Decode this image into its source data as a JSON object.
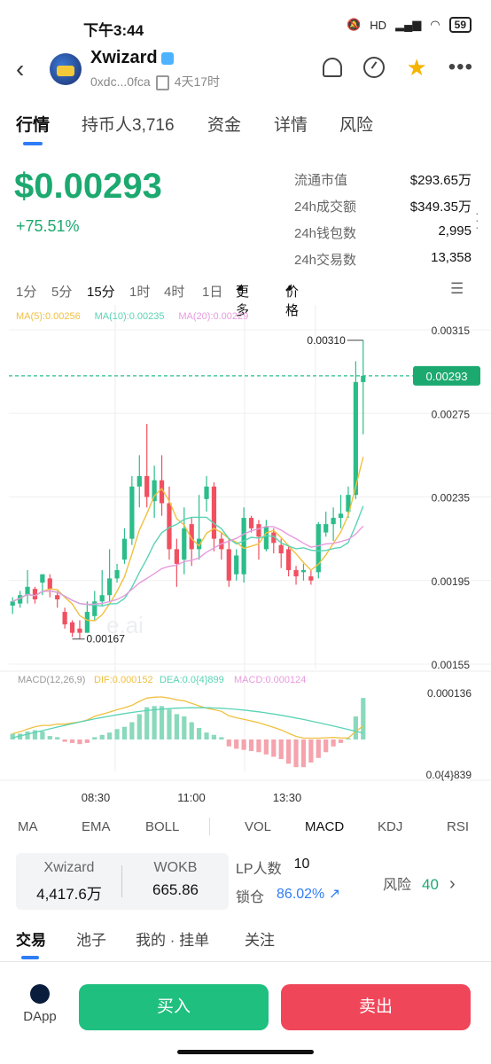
{
  "status_bar": {
    "time": "下午3:44",
    "network": "HD",
    "battery": "59"
  },
  "header": {
    "title": "Xwizard",
    "address": "0xdc...0fca",
    "age": "4天17时"
  },
  "tabs": [
    {
      "label": "行情"
    },
    {
      "label": "持币人3,716"
    },
    {
      "label": "资金"
    },
    {
      "label": "详情"
    },
    {
      "label": "风险"
    }
  ],
  "price": {
    "value": "$0.00293",
    "change": "+75.51%"
  },
  "stats": [
    {
      "label": "流通市值",
      "value": "$293.65万"
    },
    {
      "label": "24h成交额",
      "value": "$349.35万"
    },
    {
      "label": "24h钱包数",
      "value": "2,995"
    },
    {
      "label": "24h交易数",
      "value": "13,358"
    }
  ],
  "intervals": [
    "1分",
    "5分",
    "15分",
    "1时",
    "4时",
    "1日"
  ],
  "intervals_selected": "15分",
  "interval_more": "更多",
  "interval_price": "价格",
  "chart_data": {
    "type": "candlestick",
    "ma_legend": [
      {
        "label": "MA(5):0.00256",
        "color": "#f0c040"
      },
      {
        "label": "MA(10):0.00235",
        "color": "#5ad3b5"
      },
      {
        "label": "MA(20):0.00229",
        "color": "#e79bde"
      }
    ],
    "y_ticks": [
      "0.00315",
      "0.00275",
      "0.00235",
      "0.00195",
      "0.00155"
    ],
    "ylim": [
      0.00155,
      0.00315
    ],
    "current_price": "0.00293",
    "high_label": "0.00310",
    "low_label": "0.00167",
    "watermark": "e.ai",
    "x_ticks": [
      "08:30",
      "11:00",
      "13:30"
    ],
    "candles": [
      [
        0.00183,
        0.00185,
        0.00179,
        0.00187
      ],
      [
        0.00184,
        0.00188,
        0.00182,
        0.0019
      ],
      [
        0.00188,
        0.00192,
        0.00184,
        0.002
      ],
      [
        0.00191,
        0.00186,
        0.00184,
        0.00192
      ],
      [
        0.00194,
        0.00198,
        0.00188,
        0.00198
      ],
      [
        0.00196,
        0.00191,
        0.00187,
        0.00198
      ],
      [
        0.00188,
        0.00186,
        0.00182,
        0.0019
      ],
      [
        0.0018,
        0.00174,
        0.00172,
        0.00182
      ],
      [
        0.00175,
        0.0017,
        0.00168,
        0.00176
      ],
      [
        0.00172,
        0.0017,
        0.00167,
        0.00176
      ],
      [
        0.0017,
        0.0018,
        0.0017,
        0.00185
      ],
      [
        0.00178,
        0.00185,
        0.00176,
        0.0019
      ],
      [
        0.00185,
        0.00188,
        0.00183,
        0.002
      ],
      [
        0.00188,
        0.00196,
        0.00185,
        0.0021
      ],
      [
        0.00196,
        0.002,
        0.00194,
        0.00203
      ],
      [
        0.00205,
        0.00215,
        0.00203,
        0.0022
      ],
      [
        0.00215,
        0.0024,
        0.00212,
        0.00245
      ],
      [
        0.0024,
        0.00245,
        0.0023,
        0.00255
      ],
      [
        0.00245,
        0.00235,
        0.0023,
        0.0027
      ],
      [
        0.00233,
        0.00243,
        0.00225,
        0.0025
      ],
      [
        0.00243,
        0.00232,
        0.00226,
        0.00255
      ],
      [
        0.00232,
        0.0021,
        0.00205,
        0.0024
      ],
      [
        0.0021,
        0.00203,
        0.00192,
        0.00215
      ],
      [
        0.00205,
        0.0022,
        0.00198,
        0.0023
      ],
      [
        0.00222,
        0.0021,
        0.00202,
        0.00225
      ],
      [
        0.0021,
        0.00215,
        0.00205,
        0.00236
      ],
      [
        0.00234,
        0.0024,
        0.00228,
        0.00245
      ],
      [
        0.0024,
        0.00215,
        0.00209,
        0.00242
      ],
      [
        0.00215,
        0.0021,
        0.00205,
        0.00218
      ],
      [
        0.0021,
        0.00195,
        0.00192,
        0.00215
      ],
      [
        0.00198,
        0.00207,
        0.00195,
        0.0021
      ],
      [
        0.00198,
        0.00225,
        0.00194,
        0.0023
      ],
      [
        0.00225,
        0.0022,
        0.00218,
        0.00226
      ],
      [
        0.00222,
        0.00216,
        0.00205,
        0.00224
      ],
      [
        0.0021,
        0.00221,
        0.00209,
        0.00224
      ],
      [
        0.00218,
        0.00213,
        0.00208,
        0.0022
      ],
      [
        0.00212,
        0.00208,
        0.00201,
        0.00215
      ],
      [
        0.0021,
        0.002,
        0.00197,
        0.00212
      ],
      [
        0.002,
        0.00197,
        0.00193,
        0.00202
      ],
      [
        0.00199,
        0.002,
        0.00195,
        0.00203
      ],
      [
        0.00197,
        0.00195,
        0.00193,
        0.002
      ],
      [
        0.00199,
        0.00222,
        0.00196,
        0.00223
      ],
      [
        0.00218,
        0.00222,
        0.00216,
        0.00228
      ],
      [
        0.00222,
        0.00225,
        0.00214,
        0.0023
      ],
      [
        0.00225,
        0.00227,
        0.0022,
        0.00236
      ],
      [
        0.00228,
        0.00236,
        0.00225,
        0.0024
      ],
      [
        0.00236,
        0.0029,
        0.00234,
        0.003
      ],
      [
        0.0029,
        0.00293,
        0.00265,
        0.0031
      ]
    ],
    "macd": {
      "label": "MACD(12,26,9)",
      "dif": "DIF:0.000152",
      "dea": "DEA:0.0{4}899",
      "value": "MACD:0.000124",
      "y_top": "0.000136",
      "y_bottom": "0.0{4}839",
      "hist": [
        0.1,
        0.1,
        0.14,
        0.16,
        0.14,
        0.06,
        0.04,
        -0.04,
        -0.06,
        -0.08,
        -0.06,
        0.04,
        0.08,
        0.12,
        0.18,
        0.22,
        0.3,
        0.44,
        0.56,
        0.58,
        0.58,
        0.52,
        0.44,
        0.4,
        0.3,
        0.2,
        0.12,
        0.08,
        0.04,
        -0.12,
        -0.16,
        -0.18,
        -0.2,
        -0.22,
        -0.26,
        -0.3,
        -0.34,
        -0.42,
        -0.48,
        -0.48,
        -0.4,
        -0.32,
        -0.22,
        -0.12,
        -0.06,
        0.02,
        0.4,
        0.72
      ]
    }
  },
  "indicators": [
    "MA",
    "EMA",
    "BOLL",
    "VOL",
    "MACD",
    "KDJ",
    "RSI"
  ],
  "indicator_selected": "MACD",
  "pool": {
    "token_label": "Xwizard",
    "token_value": "4,417.6万",
    "base_label": "WOKB",
    "base_value": "665.86"
  },
  "lp": {
    "holders_label": "LP人数",
    "holders_value": "10",
    "lock_label": "锁仓",
    "lock_value": "86.02%"
  },
  "risk": {
    "label": "风险",
    "value": "40"
  },
  "subtabs": [
    "交易",
    "池子",
    "我的 · 挂单",
    "关注"
  ],
  "bottom": {
    "dapp": "DApp",
    "buy": "买入",
    "sell": "卖出"
  },
  "colors": {
    "up": "#2bbd8a",
    "down": "#f0505f",
    "accent": "#2f7df6"
  }
}
